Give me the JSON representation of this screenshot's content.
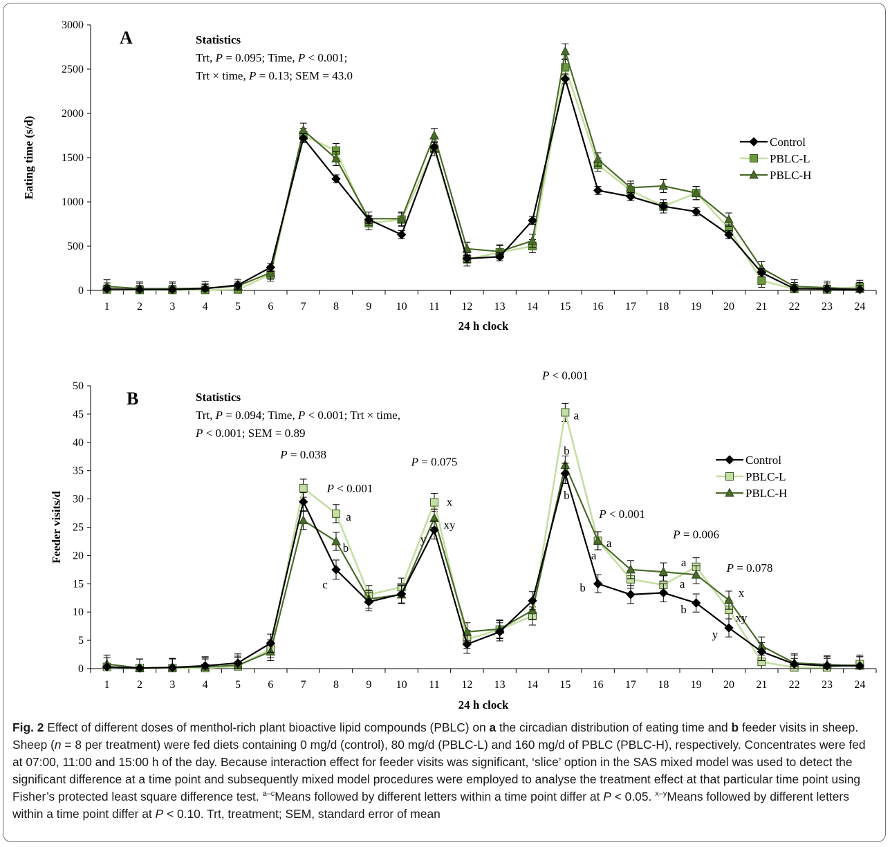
{
  "chart_data": [
    {
      "type": "line",
      "panel_label": "A",
      "xlabel": "24 h clock",
      "ylabel": "Eating time (s/d)",
      "ylim": [
        0,
        3000
      ],
      "yticks": [
        0,
        500,
        1000,
        1500,
        2000,
        2500,
        3000
      ],
      "x": [
        1,
        2,
        3,
        4,
        5,
        6,
        7,
        8,
        9,
        10,
        11,
        12,
        13,
        14,
        15,
        16,
        17,
        18,
        19,
        20,
        21,
        22,
        23,
        24
      ],
      "series": [
        {
          "name": "Control",
          "marker": "diamond",
          "color": "#000000",
          "values": [
            15,
            10,
            10,
            20,
            60,
            260,
            1720,
            1260,
            800,
            630,
            1620,
            360,
            380,
            790,
            2390,
            1130,
            1060,
            950,
            890,
            630,
            200,
            20,
            15,
            10
          ],
          "error": [
            45,
            45,
            45,
            45,
            45,
            45,
            50,
            45,
            45,
            45,
            50,
            45,
            45,
            45,
            55,
            45,
            45,
            45,
            45,
            45,
            45,
            45,
            45,
            45
          ]
        },
        {
          "name": "PBLC-L",
          "marker": "square",
          "color": "#c5dea3",
          "marker_fill": "#6b9a3e",
          "values": [
            10,
            5,
            5,
            5,
            10,
            180,
            1750,
            1580,
            760,
            800,
            1600,
            350,
            430,
            500,
            2520,
            1420,
            1130,
            950,
            1100,
            700,
            110,
            15,
            10,
            40
          ],
          "error": [
            75,
            75,
            75,
            75,
            75,
            75,
            80,
            80,
            75,
            75,
            80,
            75,
            75,
            75,
            85,
            75,
            75,
            75,
            75,
            75,
            75,
            75,
            75,
            75
          ]
        },
        {
          "name": "PBLC-H",
          "marker": "triangle",
          "color": "#4a6b2a",
          "values": [
            45,
            20,
            20,
            25,
            50,
            200,
            1810,
            1490,
            810,
            810,
            1750,
            470,
            440,
            560,
            2700,
            1480,
            1160,
            1180,
            1100,
            800,
            250,
            45,
            30,
            15
          ],
          "error": [
            75,
            75,
            75,
            75,
            75,
            75,
            80,
            80,
            75,
            75,
            80,
            75,
            75,
            75,
            85,
            75,
            75,
            75,
            75,
            75,
            75,
            75,
            75,
            75
          ]
        }
      ],
      "legend": "right",
      "statistics": {
        "heading": "Statistics",
        "line1": [
          "Trt, ",
          "P",
          " = 0.095; Time, ",
          "P",
          " < 0.001;"
        ],
        "line2": [
          "Trt × time, ",
          "P",
          " = 0.13; SEM = 43.0"
        ]
      }
    },
    {
      "type": "line",
      "panel_label": "B",
      "xlabel": "24 h clock",
      "ylabel": "Feeder visits/d",
      "ylim": [
        0,
        50
      ],
      "yticks": [
        0,
        5,
        10,
        15,
        20,
        25,
        30,
        35,
        40,
        45,
        50
      ],
      "x": [
        1,
        2,
        3,
        4,
        5,
        6,
        7,
        8,
        9,
        10,
        11,
        12,
        13,
        14,
        15,
        16,
        17,
        18,
        19,
        20,
        21,
        22,
        23,
        24
      ],
      "series": [
        {
          "name": "Control",
          "marker": "diamond",
          "color": "#000000",
          "values": [
            0.3,
            0.1,
            0.2,
            0.5,
            1.0,
            4.5,
            29.5,
            17.5,
            11.8,
            13.2,
            24.5,
            4.3,
            6.5,
            12.0,
            34.5,
            15.0,
            13.1,
            13.4,
            11.6,
            7.2,
            3.0,
            0.8,
            0.5,
            0.5
          ],
          "error": [
            1.6,
            1.6,
            1.6,
            1.6,
            1.6,
            1.6,
            1.6,
            1.7,
            1.6,
            1.6,
            1.6,
            1.6,
            1.6,
            1.6,
            1.8,
            1.6,
            1.6,
            1.6,
            1.6,
            1.6,
            1.6,
            1.6,
            1.6,
            1.6
          ]
        },
        {
          "name": "PBLC-L",
          "marker": "square",
          "color": "#c5dea3",
          "marker_fill": "#c5dea3",
          "values": [
            0.3,
            0.1,
            0.1,
            0.1,
            0.4,
            3.5,
            31.9,
            27.4,
            13.1,
            14.4,
            29.4,
            5.2,
            6.9,
            9.3,
            45.3,
            22.6,
            15.8,
            14.8,
            18.0,
            10.4,
            1.2,
            0.2,
            0.2,
            0.8
          ],
          "error": [
            1.6,
            1.6,
            1.6,
            1.6,
            1.6,
            1.6,
            1.6,
            1.6,
            1.6,
            1.6,
            1.6,
            1.6,
            1.6,
            1.6,
            1.6,
            1.6,
            1.6,
            1.6,
            1.6,
            1.6,
            1.6,
            1.6,
            1.6,
            1.6
          ]
        },
        {
          "name": "PBLC-H",
          "marker": "triangle",
          "color": "#4a6b2a",
          "values": [
            0.8,
            0.1,
            0.2,
            0.3,
            0.6,
            3.0,
            26.2,
            22.5,
            12.3,
            13.1,
            26.6,
            6.5,
            7.0,
            10.3,
            36.0,
            22.6,
            17.5,
            17.1,
            16.6,
            12.1,
            4.0,
            1.0,
            0.7,
            0.5
          ],
          "error": [
            1.6,
            1.6,
            1.6,
            1.6,
            1.6,
            1.6,
            1.6,
            1.6,
            1.6,
            1.6,
            1.6,
            1.6,
            1.6,
            1.6,
            1.6,
            1.6,
            1.6,
            1.6,
            1.6,
            1.6,
            1.6,
            1.6,
            1.6,
            1.6
          ]
        }
      ],
      "legend": "right",
      "statistics": {
        "heading": "Statistics",
        "line1": [
          "Trt, ",
          "P",
          " = 0.094; Time, ",
          "P",
          " < 0.001; Trt × time,"
        ],
        "line2": [
          "P",
          " < 0.001; SEM = 0.89"
        ]
      },
      "p_annotations": [
        {
          "x": 7,
          "text": "P = 0.038"
        },
        {
          "x": 8,
          "text": "P < 0.001"
        },
        {
          "x": 11,
          "text": "P = 0.075"
        },
        {
          "x": 15,
          "text": "P < 0.001"
        },
        {
          "x": 16,
          "text": "P < 0.001"
        },
        {
          "x": 19,
          "text": "P = 0.006"
        },
        {
          "x": 20,
          "text": "P = 0.078"
        }
      ],
      "letter_annotations": [
        {
          "x": 8,
          "series": "PBLC-L",
          "text": "a"
        },
        {
          "x": 8,
          "series": "PBLC-H",
          "text": "b"
        },
        {
          "x": 8,
          "series": "Control",
          "text": "c"
        },
        {
          "x": 11,
          "series": "PBLC-L",
          "text": "x"
        },
        {
          "x": 11,
          "series": "PBLC-H",
          "text": "xy"
        },
        {
          "x": 11,
          "series": "Control",
          "text": "y"
        },
        {
          "x": 15,
          "series": "PBLC-L",
          "text": "a"
        },
        {
          "x": 15,
          "series": "PBLC-H",
          "text": "b"
        },
        {
          "x": 15,
          "series": "Control",
          "text": "b"
        },
        {
          "x": 16,
          "series": "PBLC-H",
          "text": "a"
        },
        {
          "x": 16,
          "series": "PBLC-L",
          "text": "a"
        },
        {
          "x": 16,
          "series": "Control",
          "text": "b"
        },
        {
          "x": 19,
          "series": "PBLC-L",
          "text": "a"
        },
        {
          "x": 19,
          "series": "PBLC-H",
          "text": "a"
        },
        {
          "x": 19,
          "series": "Control",
          "text": "b"
        },
        {
          "x": 20,
          "series": "PBLC-H",
          "text": "x"
        },
        {
          "x": 20,
          "series": "PBLC-L",
          "text": "xy"
        },
        {
          "x": 20,
          "series": "Control",
          "text": "y"
        }
      ]
    }
  ],
  "caption": {
    "fig_label": "Fig. 2",
    "p1": " Effect of different doses of menthol-rich plant bioactive lipid compounds (PBLC) on ",
    "a": "a",
    "p2": " the circadian distribution of eating time and ",
    "b": "b",
    "p3": " feeder visits in sheep. Sheep (",
    "n": "n",
    "p4": " = 8 per treatment) were fed diets containing 0 mg/d (control), 80 mg/d (PBLC-L) and 160 mg/d of PBLC (PBLC-H), respectively. Concentrates were fed at 07:00, 11:00 and 15:00 h of the day. Because interaction effect for feeder visits was significant, ‘slice’ option in the SAS mixed model was used to detect the significant difference at a time point and subsequently mixed model procedures were employed to analyse the treatment effect at that particular time point using Fisher’s protected least square difference test. ",
    "sup1": "a–c",
    "p5": "Means followed by different letters within a time point differ at ",
    "P1": "P",
    "p6": " < 0.05. ",
    "sup2": "x–y",
    "p7": "Means followed by different letters within a time point differ at ",
    "P2": "P",
    "p8": " < 0.10. Trt, treatment; SEM, standard error of mean"
  }
}
